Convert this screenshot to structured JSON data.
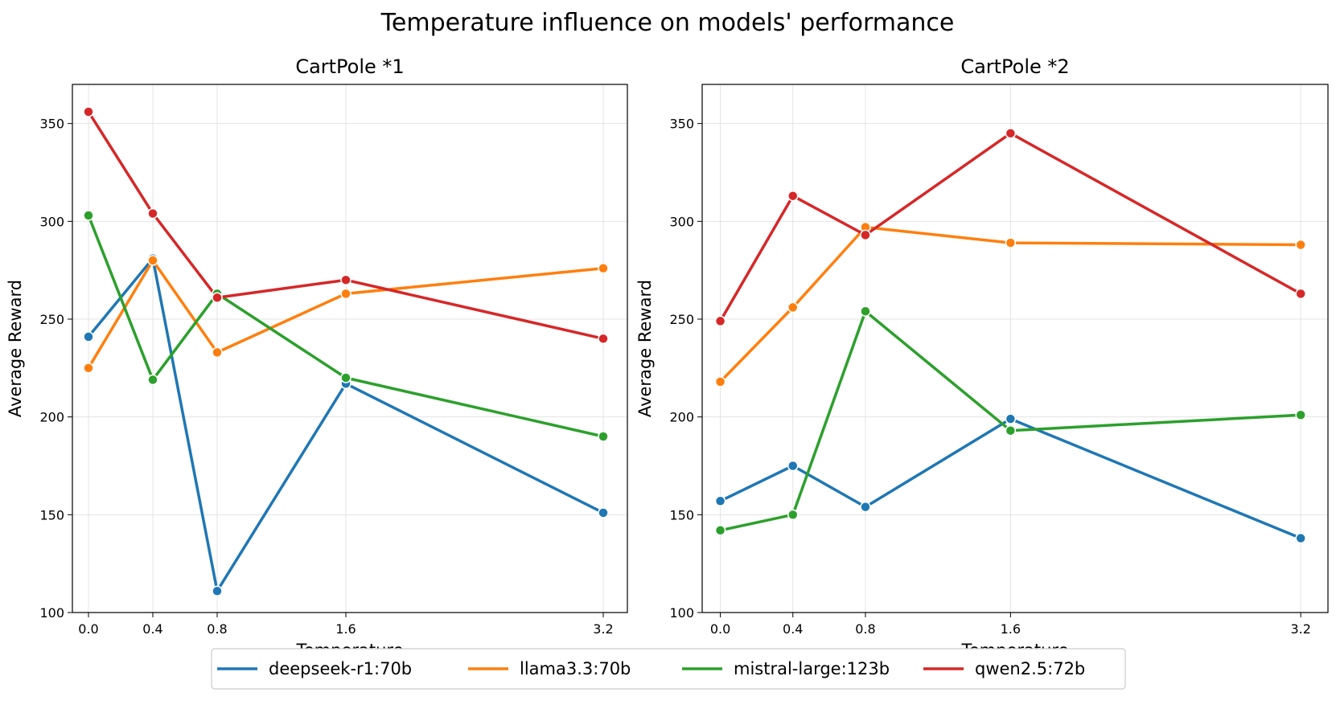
{
  "figure": {
    "title": "Temperature influence on models' performance"
  },
  "chart_data": [
    {
      "type": "line",
      "title": "CartPole *1",
      "xlabel": "Temperature",
      "ylabel": "Average Reward",
      "x": [
        0.0,
        0.4,
        0.8,
        1.6,
        3.2
      ],
      "x_tick_labels": [
        "0.0",
        "0.4",
        "0.8",
        "1.6",
        "3.2"
      ],
      "xlim": [
        -0.1,
        3.35
      ],
      "ylim": [
        100,
        370
      ],
      "y_ticks": [
        100,
        150,
        200,
        250,
        300,
        350
      ],
      "grid": true,
      "series": [
        {
          "name": "deepseek-r1:70b",
          "color": "#1f77b4",
          "values": [
            241,
            281,
            111,
            217,
            151
          ]
        },
        {
          "name": "llama3.3:70b",
          "color": "#ff7f0e",
          "values": [
            225,
            280,
            233,
            263,
            276
          ]
        },
        {
          "name": "mistral-large:123b",
          "color": "#2ca02c",
          "values": [
            303,
            219,
            263,
            220,
            190
          ]
        },
        {
          "name": "qwen2.5:72b",
          "color": "#d62728",
          "values": [
            356,
            304,
            261,
            270,
            240
          ]
        }
      ]
    },
    {
      "type": "line",
      "title": "CartPole *2",
      "xlabel": "Temperature",
      "ylabel": "Average Reward",
      "x": [
        0.0,
        0.4,
        0.8,
        1.6,
        3.2
      ],
      "x_tick_labels": [
        "0.0",
        "0.4",
        "0.8",
        "1.6",
        "3.2"
      ],
      "xlim": [
        -0.1,
        3.35
      ],
      "ylim": [
        100,
        370
      ],
      "y_ticks": [
        100,
        150,
        200,
        250,
        300,
        350
      ],
      "grid": true,
      "series": [
        {
          "name": "deepseek-r1:70b",
          "color": "#1f77b4",
          "values": [
            157,
            175,
            154,
            199,
            138
          ]
        },
        {
          "name": "llama3.3:70b",
          "color": "#ff7f0e",
          "values": [
            218,
            256,
            297,
            289,
            288
          ]
        },
        {
          "name": "mistral-large:123b",
          "color": "#2ca02c",
          "values": [
            142,
            150,
            254,
            193,
            201
          ]
        },
        {
          "name": "qwen2.5:72b",
          "color": "#d62728",
          "values": [
            249,
            313,
            293,
            345,
            263
          ]
        }
      ]
    }
  ],
  "legend": {
    "placement": "bottom-center",
    "entries": [
      {
        "label": "deepseek-r1:70b",
        "color": "#1f77b4"
      },
      {
        "label": "llama3.3:70b",
        "color": "#ff7f0e"
      },
      {
        "label": "mistral-large:123b",
        "color": "#2ca02c"
      },
      {
        "label": "qwen2.5:72b",
        "color": "#d62728"
      }
    ]
  }
}
